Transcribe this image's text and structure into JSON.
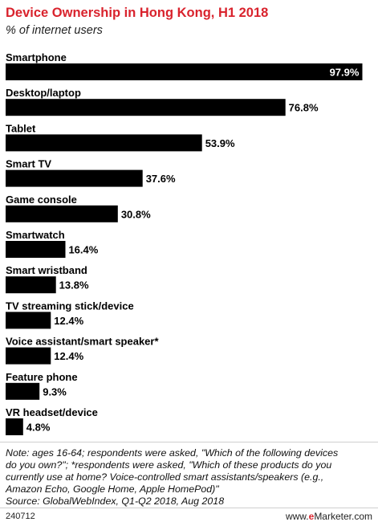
{
  "header": {
    "title": "Device Ownership in Hong Kong, H1 2018",
    "subtitle": "% of internet users"
  },
  "chart_data": {
    "type": "bar",
    "orientation": "horizontal",
    "categories": [
      "Smartphone",
      "Desktop/laptop",
      "Tablet",
      "Smart TV",
      "Game console",
      "Smartwatch",
      "Smart wristband",
      "TV streaming stick/device",
      "Voice assistant/smart speaker*",
      "Feature phone",
      "VR headset/device"
    ],
    "values": [
      97.9,
      76.8,
      53.9,
      37.6,
      30.8,
      16.4,
      13.8,
      12.4,
      12.4,
      9.3,
      4.8
    ],
    "value_labels": [
      "97.9%",
      "76.8%",
      "53.9%",
      "37.6%",
      "30.8%",
      "16.4%",
      "13.8%",
      "12.4%",
      "12.4%",
      "9.3%",
      "4.8%"
    ],
    "title": "Device Ownership in Hong Kong, H1 2018",
    "subtitle": "% of internet users",
    "xlim": [
      0,
      100
    ],
    "grid": false,
    "legend": "none",
    "bar_color": "#000000"
  },
  "footer": {
    "note_lines": [
      "Note: ages 16-64; respondents were asked, \"Which of the following devices",
      "do you own?\"; *respondents were asked, \"Which of these products do you",
      "currently use at home? Voice-controlled smart assistants/speakers (e.g.,",
      "Amazon Echo, Google Home, Apple HomePod)\""
    ],
    "source": "Source: GlobalWebIndex, Q1-Q2 2018, Aug 2018",
    "chart_id": "240712",
    "brand_prefix": "www.",
    "brand_e": "e",
    "brand_rest": "Marketer.com"
  },
  "colors": {
    "title": "#d9232d",
    "bars": "#000000",
    "value_inside": "#ffffff",
    "value_outside": "#000000"
  }
}
